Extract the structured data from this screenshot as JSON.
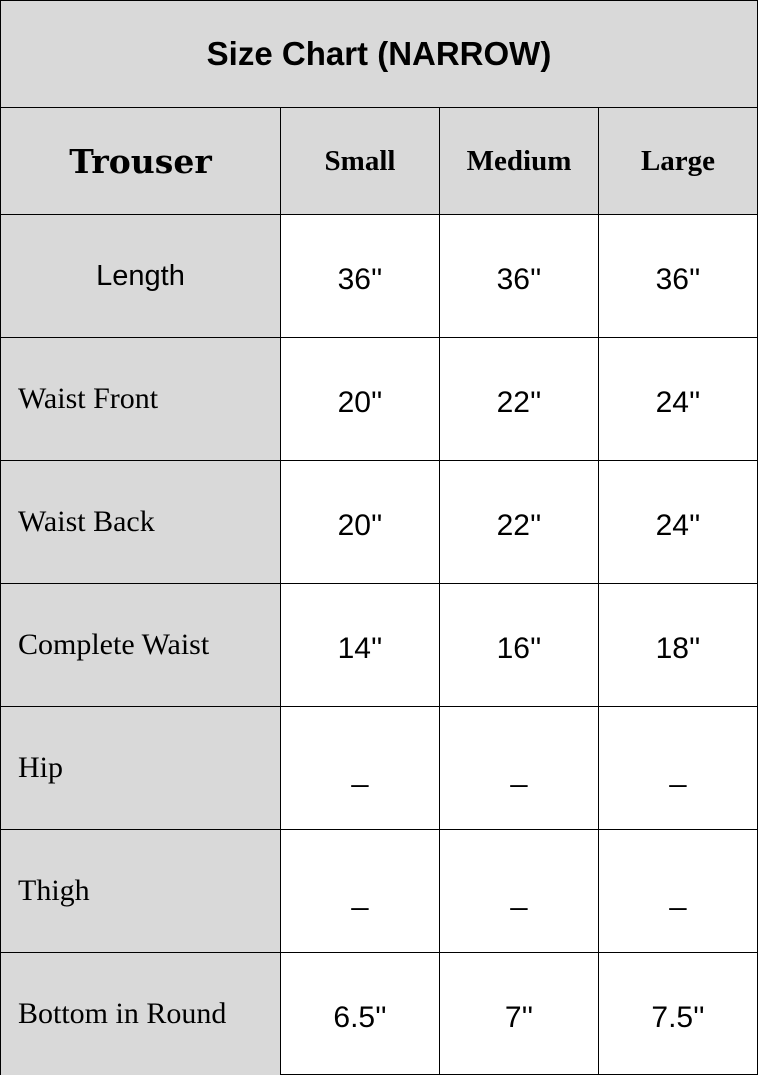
{
  "title": "Size Chart (NARROW)",
  "header": {
    "category": "Trouser",
    "sizes": [
      "Small",
      "Medium",
      "Large"
    ]
  },
  "rows": [
    {
      "label": "Length",
      "values": [
        "36''",
        "36''",
        "36''"
      ]
    },
    {
      "label": "Waist Front",
      "values": [
        "20''",
        "22''",
        "24''"
      ]
    },
    {
      "label": "Waist Back",
      "values": [
        "20''",
        "22''",
        "24''"
      ]
    },
    {
      "label": "Complete Waist",
      "values": [
        "14''",
        "16''",
        "18''"
      ]
    },
    {
      "label": "Hip",
      "values": [
        "_",
        "_",
        "_"
      ]
    },
    {
      "label": "Thigh",
      "values": [
        "_",
        "_",
        "_"
      ]
    },
    {
      "label": "Bottom in Round",
      "values": [
        "6.5''",
        "7''",
        "7.5''"
      ]
    }
  ],
  "colors": {
    "header_bg": "#d9d9d9",
    "border": "#000000",
    "cell_bg": "#ffffff"
  }
}
